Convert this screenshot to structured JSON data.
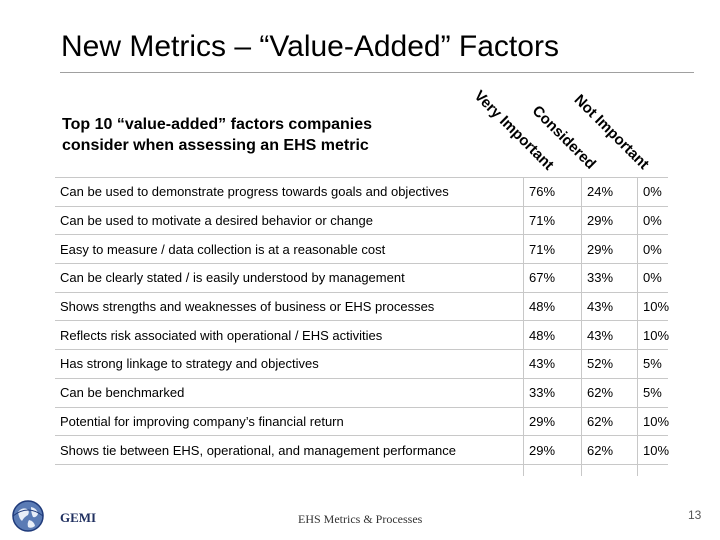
{
  "slide": {
    "title": "New Metrics – “Value-Added” Factors",
    "subtitle_line1": "Top 10 “value-added” factors companies",
    "subtitle_line2": "consider when assessing an EHS metric"
  },
  "columns": [
    "Very Important",
    "Considered",
    "Not Important"
  ],
  "rows": [
    {
      "label": "Can be used to demonstrate progress towards goals and objectives",
      "values": [
        "76%",
        "24%",
        "0%"
      ]
    },
    {
      "label": "Can be used to motivate a desired behavior or change",
      "values": [
        "71%",
        "29%",
        "0%"
      ]
    },
    {
      "label": "Easy to measure / data collection is at a reasonable cost",
      "values": [
        "71%",
        "29%",
        "0%"
      ]
    },
    {
      "label": "Can be clearly stated / is easily understood by management",
      "values": [
        "67%",
        "33%",
        "0%"
      ]
    },
    {
      "label": "Shows strengths and weaknesses of business or EHS processes",
      "values": [
        "48%",
        "43%",
        "10%"
      ]
    },
    {
      "label": "Reflects risk associated with operational / EHS activities",
      "values": [
        "48%",
        "43%",
        "10%"
      ]
    },
    {
      "label": "Has strong linkage to strategy and objectives",
      "values": [
        "43%",
        "52%",
        "5%"
      ]
    },
    {
      "label": "Can be benchmarked",
      "values": [
        "33%",
        "62%",
        "5%"
      ]
    },
    {
      "label": "Potential for improving company’s financial return",
      "values": [
        "29%",
        "62%",
        "10%"
      ]
    },
    {
      "label": "Shows tie between EHS, operational, and management performance",
      "values": [
        "29%",
        "62%",
        "10%"
      ]
    }
  ],
  "footer": {
    "logo_text": "GEMI",
    "center_text": "EHS Metrics & Processes",
    "page_number": "13"
  }
}
